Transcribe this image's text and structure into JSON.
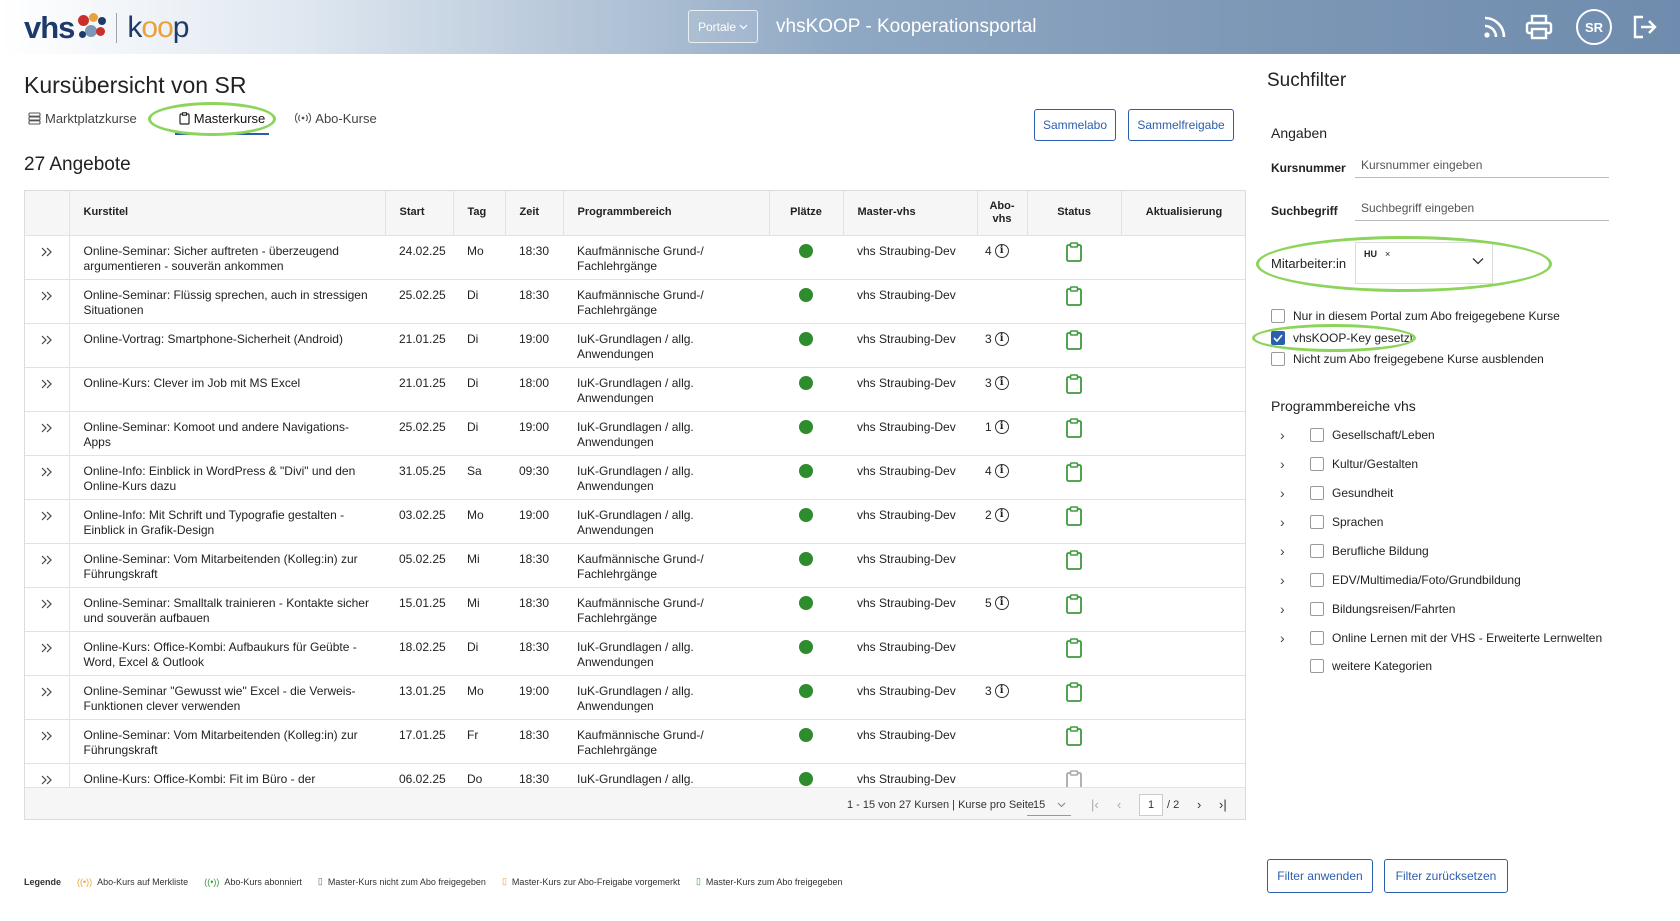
{
  "header": {
    "logo_text": "vhs",
    "logo_koop_left": "k",
    "logo_koop_mid": "oo",
    "logo_koop_right": "p",
    "portale_label": "Portale",
    "portal_title": "vhsKOOP - Kooperationsportal",
    "avatar_initials": "SR",
    "icons": [
      "rss-icon",
      "print-icon",
      "logout-icon"
    ]
  },
  "main": {
    "page_title": "Kursübersicht von SR",
    "tabs": [
      {
        "label": "Marktplatzkurse",
        "icon": "database-icon"
      },
      {
        "label": "Masterkurse",
        "icon": "clipboard-icon",
        "active": true
      },
      {
        "label": "Abo-Kurse",
        "icon": "broadcast-icon"
      }
    ],
    "buttons": {
      "sammelabo": "Sammelabo",
      "sammelfreigabe": "Sammelfreigabe"
    },
    "count_label": "27 Angebote"
  },
  "table": {
    "columns": [
      "Kurstitel",
      "Start",
      "Tag",
      "Zeit",
      "Programmbereich",
      "Plätze",
      "Master-vhs",
      "Abo-vhs",
      "Status",
      "Aktualisierung"
    ],
    "rows": [
      {
        "title": "Online-Seminar: Sicher auftreten - überzeugend argumentieren - souverän ankommen",
        "start": "24.02.25",
        "tag": "Mo",
        "zeit": "18:30",
        "programm": "Kaufmännische Grund-/ Fachlehrgänge",
        "master": "vhs Straubing-Dev",
        "abo": "4"
      },
      {
        "title": "Online-Seminar: Flüssig sprechen, auch in stressigen Situationen",
        "start": "25.02.25",
        "tag": "Di",
        "zeit": "18:30",
        "programm": "Kaufmännische Grund-/ Fachlehrgänge",
        "master": "vhs Straubing-Dev",
        "abo": ""
      },
      {
        "title": "Online-Vortrag: Smartphone-Sicherheit (Android)",
        "start": "21.01.25",
        "tag": "Di",
        "zeit": "19:00",
        "programm": "IuK-Grundlagen / allg. Anwendungen",
        "master": "vhs Straubing-Dev",
        "abo": "3"
      },
      {
        "title": "Online-Kurs: Clever im Job mit MS Excel",
        "start": "21.01.25",
        "tag": "Di",
        "zeit": "18:00",
        "programm": "IuK-Grundlagen / allg. Anwendungen",
        "master": "vhs Straubing-Dev",
        "abo": "3"
      },
      {
        "title": "Online-Seminar: Komoot und andere Navigations-Apps",
        "start": "25.02.25",
        "tag": "Di",
        "zeit": "19:00",
        "programm": "IuK-Grundlagen / allg. Anwendungen",
        "master": "vhs Straubing-Dev",
        "abo": "1"
      },
      {
        "title": "Online-Info: Einblick in WordPress & \"Divi\" und den Online-Kurs dazu",
        "start": "31.05.25",
        "tag": "Sa",
        "zeit": "09:30",
        "programm": "IuK-Grundlagen / allg. Anwendungen",
        "master": "vhs Straubing-Dev",
        "abo": "4"
      },
      {
        "title": "Online-Info: Mit Schrift und Typografie gestalten - Einblick in Grafik-Design",
        "start": "03.02.25",
        "tag": "Mo",
        "zeit": "19:00",
        "programm": "IuK-Grundlagen / allg. Anwendungen",
        "master": "vhs Straubing-Dev",
        "abo": "2"
      },
      {
        "title": "Online-Seminar: Vom Mitarbeitenden (Kolleg:in) zur Führungskraft",
        "start": "05.02.25",
        "tag": "Mi",
        "zeit": "18:30",
        "programm": "Kaufmännische Grund-/ Fachlehrgänge",
        "master": "vhs Straubing-Dev",
        "abo": ""
      },
      {
        "title": "Online-Seminar: Smalltalk trainieren - Kontakte sicher und souverän aufbauen",
        "start": "15.01.25",
        "tag": "Mi",
        "zeit": "18:30",
        "programm": "Kaufmännische Grund-/ Fachlehrgänge",
        "master": "vhs Straubing-Dev",
        "abo": "5"
      },
      {
        "title": "Online-Kurs: Office-Kombi: Aufbaukurs für Geübte - Word, Excel & Outlook",
        "start": "18.02.25",
        "tag": "Di",
        "zeit": "18:30",
        "programm": "IuK-Grundlagen / allg. Anwendungen",
        "master": "vhs Straubing-Dev",
        "abo": ""
      },
      {
        "title": "Online-Seminar \"Gewusst wie\" Excel - die Verweis-Funktionen clever verwenden",
        "start": "13.01.25",
        "tag": "Mo",
        "zeit": "19:00",
        "programm": "IuK-Grundlagen / allg. Anwendungen",
        "master": "vhs Straubing-Dev",
        "abo": "3"
      },
      {
        "title": "Online-Seminar: Vom Mitarbeitenden (Kolleg:in) zur Führungskraft",
        "start": "17.01.25",
        "tag": "Fr",
        "zeit": "18:30",
        "programm": "Kaufmännische Grund-/ Fachlehrgänge",
        "master": "vhs Straubing-Dev",
        "abo": ""
      },
      {
        "title": "Online-Kurs: Office-Kombi: Fit im Büro - der",
        "start": "06.02.25",
        "tag": "Do",
        "zeit": "18:30",
        "programm": "IuK-Grundlagen / allg.",
        "master": "vhs Straubing-Dev",
        "abo": ""
      }
    ],
    "colors": {
      "platz_dot": "#2e8b2e",
      "status_icon": "#3e9a3e"
    }
  },
  "pager": {
    "info": "1 - 15 von 27 Kursen | Kurse pro Seite",
    "per_page": "15",
    "page": "1",
    "total": "/ 2"
  },
  "legend": {
    "title": "Legende",
    "items": [
      {
        "label": "Abo-Kurs auf Merkliste",
        "icon": "broadcast-icon",
        "color": "#e9a23b"
      },
      {
        "label": "Abo-Kurs abonniert",
        "icon": "broadcast-icon",
        "color": "#3e9a3e"
      },
      {
        "label": "Master-Kurs nicht zum Abo freigegeben",
        "icon": "clipboard-icon",
        "color": "#666666"
      },
      {
        "label": "Master-Kurs zur Abo-Freigabe vorgemerkt",
        "icon": "clipboard-icon",
        "color": "#e9a23b"
      },
      {
        "label": "Master-Kurs zum Abo freigegeben",
        "icon": "clipboard-icon",
        "color": "#3e9a3e"
      }
    ]
  },
  "filter": {
    "title": "Suchfilter",
    "angaben": "Angaben",
    "kursnummer_label": "Kursnummer",
    "kursnummer_placeholder": "Kursnummer eingeben",
    "suchbegriff_label": "Suchbegriff",
    "suchbegriff_placeholder": "Suchbegriff eingeben",
    "mitarbeiter_label": "Mitarbeiter:in",
    "mitarbeiter_chip": "HU",
    "chip_remove": "×",
    "checkboxes": [
      {
        "label": "Nur in diesem Portal zum Abo freigegebene Kurse",
        "checked": false
      },
      {
        "label": "vhsKOOP-Key gesetzt",
        "checked": true
      },
      {
        "label": "Nicht zum Abo freigegebene Kurse ausblenden",
        "checked": false
      }
    ],
    "programm_title": "Programmbereiche vhs",
    "programm": [
      {
        "label": "Gesellschaft/Leben",
        "expandable": true
      },
      {
        "label": "Kultur/Gestalten",
        "expandable": true
      },
      {
        "label": "Gesundheit",
        "expandable": true
      },
      {
        "label": "Sprachen",
        "expandable": true
      },
      {
        "label": "Berufliche Bildung",
        "expandable": true
      },
      {
        "label": "EDV/Multimedia/Foto/Grundbildung",
        "expandable": true
      },
      {
        "label": "Bildungsreisen/Fahrten",
        "expandable": true
      },
      {
        "label": "Online Lernen mit der VHS - Erweiterte Lernwelten",
        "expandable": true
      },
      {
        "label": "weitere Kategorien",
        "expandable": false
      }
    ],
    "apply_label": "Filter anwenden",
    "reset_label": "Filter zurücksetzen"
  },
  "highlight_color": "#8cd45a",
  "accent_color": "#2b5fae"
}
